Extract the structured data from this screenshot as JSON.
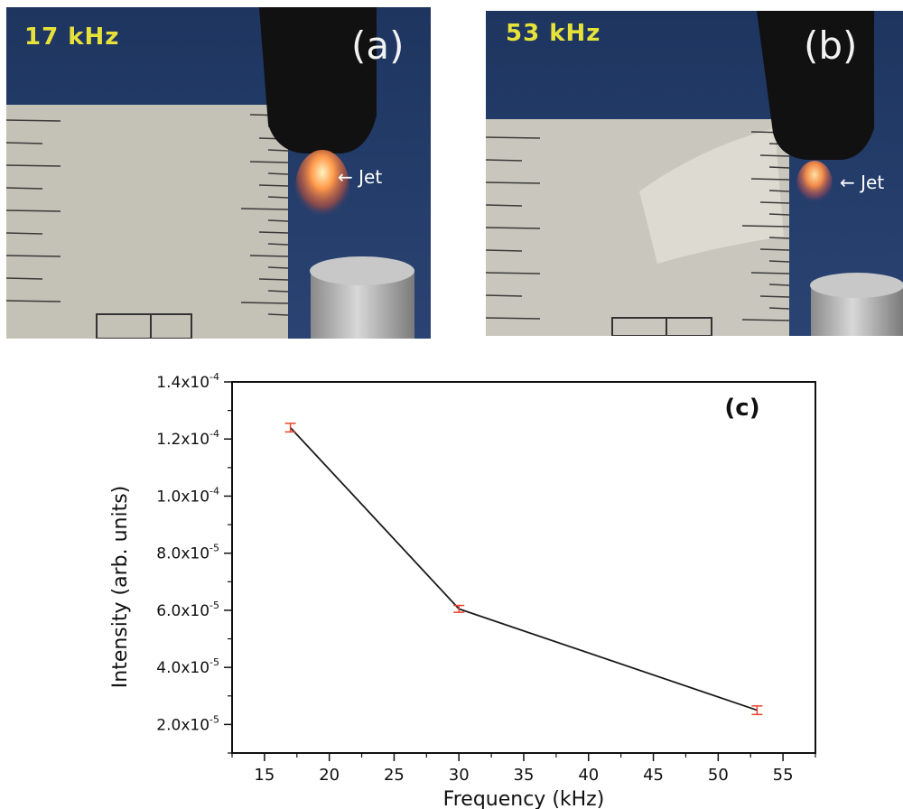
{
  "photos": {
    "a": {
      "frequency_label": "17 kHz",
      "panel_tag": "(a)",
      "arrow_label": "← Jet"
    },
    "b": {
      "frequency_label": "53 kHz",
      "panel_tag": "(b)",
      "arrow_label": "← Jet"
    }
  },
  "chart_data": {
    "type": "line",
    "panel_tag": "(c)",
    "title": "",
    "xlabel": "Frequency (kHz)",
    "ylabel": "Intensity (arb. units)",
    "xlim": [
      12.5,
      57.5
    ],
    "ylim": [
      1e-05,
      0.00014
    ],
    "x_ticks": [
      15,
      20,
      25,
      30,
      35,
      40,
      45,
      50,
      55
    ],
    "y_ticks": [
      {
        "value": 2e-05,
        "mantissa": "2.0x10",
        "exp": "-5"
      },
      {
        "value": 4e-05,
        "mantissa": "4.0x10",
        "exp": "-5"
      },
      {
        "value": 6e-05,
        "mantissa": "6.0x10",
        "exp": "-5"
      },
      {
        "value": 8e-05,
        "mantissa": "8.0x10",
        "exp": "-5"
      },
      {
        "value": 0.0001,
        "mantissa": "1.0x10",
        "exp": "-4"
      },
      {
        "value": 0.00012,
        "mantissa": "1.2x10",
        "exp": "-4"
      },
      {
        "value": 0.00014,
        "mantissa": "1.4x10",
        "exp": "-4"
      }
    ],
    "grid": false,
    "series": [
      {
        "line_color": "#1a1a1a",
        "errorbar_color": "#e8452c",
        "x": [
          17,
          30,
          53
        ],
        "y": [
          0.000124,
          6.05e-05,
          2.5e-05
        ],
        "yerr": [
          1.5e-06,
          1.2e-06,
          1.5e-06
        ]
      }
    ]
  }
}
